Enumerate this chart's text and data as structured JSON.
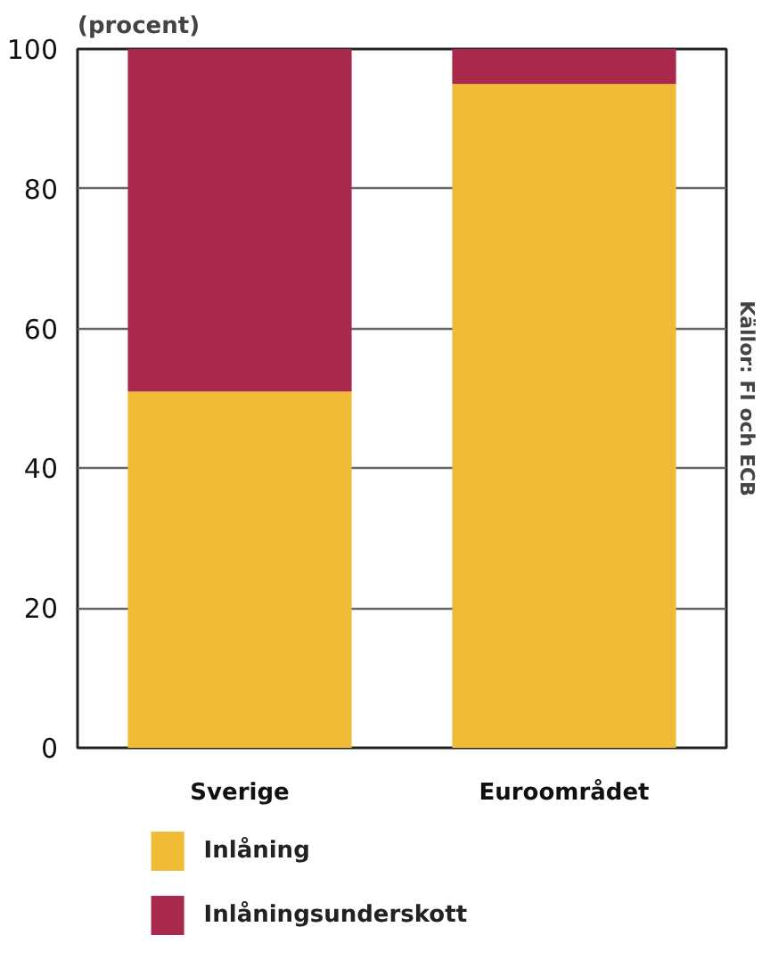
{
  "chart_data": {
    "type": "bar",
    "stacked": true,
    "title": "(procent)",
    "categories": [
      "Sverige",
      "Euroområdet"
    ],
    "series": [
      {
        "name": "Inlåning",
        "color": "#f0bb35",
        "values": [
          51,
          95
        ]
      },
      {
        "name": "Inlåningsunderskott",
        "color": "#a8294c",
        "values": [
          49,
          5
        ]
      }
    ],
    "ylim": [
      0,
      100
    ],
    "yticks": [
      0,
      20,
      40,
      60,
      80,
      100
    ],
    "grid": "y",
    "legend": "bottom",
    "annotations": [
      "Källor: FI och ECB"
    ]
  }
}
